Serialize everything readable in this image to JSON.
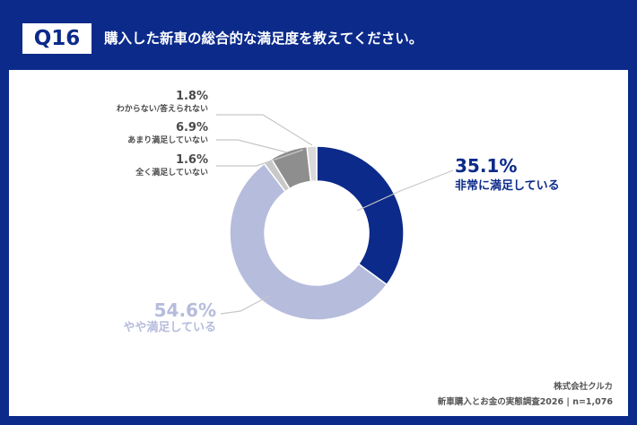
{
  "header": {
    "badge": "Q16",
    "question": "購入した新車の総合的な満足度を教えてください。"
  },
  "footer": {
    "company": "株式会社クルカ",
    "survey": "新車購入とお金の実態調査2026 | n=1,076"
  },
  "colors": {
    "background": "#0b2a8a",
    "very_satisfied": "#0b2a8a",
    "somewhat_satisfied": "#b6bcdc",
    "not_at_all": "#c8c8c8",
    "not_very": "#8e8e8e",
    "dont_know": "#d9d9d9"
  },
  "chart_data": {
    "type": "pie",
    "donut": true,
    "slices": [
      {
        "label": "非常に満足している",
        "value": 35.1,
        "display": "35.1%",
        "color": "#0b2a8a"
      },
      {
        "label": "やや満足している",
        "value": 54.6,
        "display": "54.6%",
        "color": "#b6bcdc"
      },
      {
        "label": "全く満足していない",
        "value": 1.6,
        "display": "1.6%",
        "color": "#c8c8c8"
      },
      {
        "label": "あまり満足していない",
        "value": 6.9,
        "display": "6.9%",
        "color": "#8e8e8e"
      },
      {
        "label": "わからない/答えられない",
        "value": 1.8,
        "display": "1.8%",
        "color": "#d9d9d9"
      }
    ]
  }
}
